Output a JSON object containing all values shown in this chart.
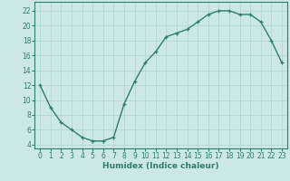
{
  "x": [
    0,
    1,
    2,
    3,
    4,
    5,
    6,
    7,
    8,
    9,
    10,
    11,
    12,
    13,
    14,
    15,
    16,
    17,
    18,
    19,
    20,
    21,
    22,
    23
  ],
  "y": [
    12,
    9,
    7,
    6,
    5,
    4.5,
    4.5,
    5,
    9.5,
    12.5,
    15,
    16.5,
    18.5,
    19,
    19.5,
    20.5,
    21.5,
    22,
    22,
    21.5,
    21.5,
    20.5,
    18,
    15
  ],
  "line_color": "#2e7d6e",
  "marker": "+",
  "bg_color": "#cce8e4",
  "grid_color": "#b8d8d4",
  "xlabel": "Humidex (Indice chaleur)",
  "xlim": [
    -0.5,
    23.5
  ],
  "ylim": [
    3.5,
    23.2
  ],
  "xticks": [
    0,
    1,
    2,
    3,
    4,
    5,
    6,
    7,
    8,
    9,
    10,
    11,
    12,
    13,
    14,
    15,
    16,
    17,
    18,
    19,
    20,
    21,
    22,
    23
  ],
  "yticks": [
    4,
    6,
    8,
    10,
    12,
    14,
    16,
    18,
    20,
    22
  ],
  "xlabel_fontsize": 6.5,
  "tick_fontsize": 5.5,
  "line_width": 1.0,
  "marker_size": 3.5
}
